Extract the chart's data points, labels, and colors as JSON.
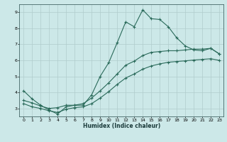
{
  "xlabel": "Humidex (Indice chaleur)",
  "background_color": "#cce8e8",
  "grid_color": "#b0cccc",
  "line_color": "#2a6a5a",
  "xlim": [
    -0.5,
    23.5
  ],
  "ylim": [
    2.5,
    9.5
  ],
  "xticks": [
    0,
    1,
    2,
    3,
    4,
    5,
    6,
    7,
    8,
    9,
    10,
    11,
    12,
    13,
    14,
    15,
    16,
    17,
    18,
    19,
    20,
    21,
    22,
    23
  ],
  "yticks": [
    3,
    4,
    5,
    6,
    7,
    8,
    9
  ],
  "line1_x": [
    0,
    1,
    2,
    3,
    4,
    5,
    6,
    7,
    8,
    9,
    10,
    11,
    12,
    13,
    14,
    15,
    16,
    17,
    18,
    19,
    20,
    21,
    22,
    23
  ],
  "line1_y": [
    4.1,
    3.6,
    3.2,
    2.9,
    2.65,
    3.1,
    3.2,
    3.2,
    3.85,
    5.0,
    5.85,
    7.1,
    8.4,
    8.1,
    9.15,
    8.6,
    8.55,
    8.1,
    7.4,
    6.9,
    6.65,
    6.6,
    6.75,
    6.4
  ],
  "line2_x": [
    0,
    1,
    2,
    3,
    4,
    5,
    6,
    7,
    8,
    9,
    10,
    11,
    12,
    13,
    14,
    15,
    16,
    17,
    18,
    19,
    20,
    21,
    22,
    23
  ],
  "line2_y": [
    3.5,
    3.35,
    3.15,
    3.0,
    3.05,
    3.2,
    3.2,
    3.3,
    3.65,
    4.1,
    4.6,
    5.15,
    5.7,
    5.95,
    6.3,
    6.5,
    6.55,
    6.6,
    6.6,
    6.65,
    6.7,
    6.7,
    6.75,
    6.4
  ],
  "line3_x": [
    0,
    1,
    2,
    3,
    4,
    5,
    6,
    7,
    8,
    9,
    10,
    11,
    12,
    13,
    14,
    15,
    16,
    17,
    18,
    19,
    20,
    21,
    22,
    23
  ],
  "line3_y": [
    3.3,
    3.1,
    3.0,
    2.85,
    2.75,
    2.95,
    3.05,
    3.1,
    3.3,
    3.65,
    4.05,
    4.5,
    4.9,
    5.15,
    5.45,
    5.65,
    5.78,
    5.88,
    5.93,
    5.97,
    6.02,
    6.06,
    6.1,
    6.0
  ]
}
